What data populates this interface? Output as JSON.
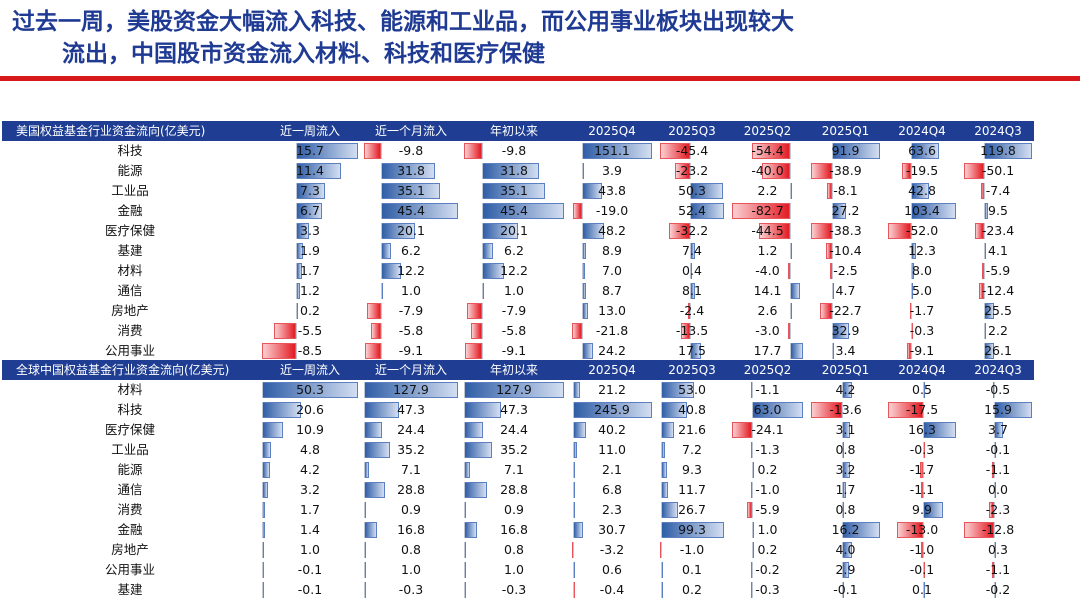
{
  "headline": {
    "line1": "过去一周，美股资金大幅流入科技、能源和工业品，而公用事业板块出现较大",
    "line2": "流出，中国股市资金流入材料、科技和医疗保健"
  },
  "colors": {
    "headline": "#1f3a93",
    "accent_line": "#d7191c",
    "header_bg": "#1f3e93",
    "positive_bar": "#2f5da6",
    "negative_bar": "#e31b23"
  },
  "tables": [
    {
      "title": "美国权益基金行业资金流向(亿美元)",
      "columns": [
        "近一周流入",
        "近一个月流入",
        "年初以来",
        "2025Q4",
        "2025Q3",
        "2025Q2",
        "2025Q1",
        "2024Q4",
        "2024Q3"
      ],
      "rows": [
        {
          "label": "科技",
          "values": [
            "15.7",
            "-9.8",
            "-9.8",
            "151.1",
            "-45.4",
            "-54.4",
            "91.9",
            "63.6",
            "119.8"
          ]
        },
        {
          "label": "能源",
          "values": [
            "11.4",
            "31.8",
            "31.8",
            "3.9",
            "-23.2",
            "-40.0",
            "-38.9",
            "-19.5",
            "-50.1"
          ]
        },
        {
          "label": "工业品",
          "values": [
            "7.3",
            "35.1",
            "35.1",
            "43.8",
            "50.3",
            "2.2",
            "-8.1",
            "42.8",
            "-7.4"
          ]
        },
        {
          "label": "金融",
          "values": [
            "6.7",
            "45.4",
            "45.4",
            "-19.0",
            "52.4",
            "-82.7",
            "27.2",
            "103.4",
            "9.5"
          ]
        },
        {
          "label": "医疗保健",
          "values": [
            "3.3",
            "20.1",
            "20.1",
            "48.2",
            "-32.2",
            "-44.5",
            "-38.3",
            "-52.0",
            "-23.4"
          ]
        },
        {
          "label": "基建",
          "values": [
            "1.9",
            "6.2",
            "6.2",
            "8.9",
            "7.4",
            "1.2",
            "-10.4",
            "12.3",
            "4.1"
          ]
        },
        {
          "label": "材料",
          "values": [
            "1.7",
            "12.2",
            "12.2",
            "7.0",
            "0.4",
            "-4.0",
            "-2.5",
            "8.0",
            "-5.9"
          ]
        },
        {
          "label": "通信",
          "values": [
            "1.2",
            "1.0",
            "1.0",
            "8.7",
            "8.1",
            "14.1",
            "4.7",
            "5.0",
            "-12.4"
          ]
        },
        {
          "label": "房地产",
          "values": [
            "0.2",
            "-7.9",
            "-7.9",
            "13.0",
            "-2.4",
            "2.6",
            "-22.7",
            "-1.7",
            "25.5"
          ]
        },
        {
          "label": "消费",
          "values": [
            "-5.5",
            "-5.8",
            "-5.8",
            "-21.8",
            "-13.5",
            "-3.0",
            "32.9",
            "-0.3",
            "2.2"
          ]
        },
        {
          "label": "公用事业",
          "values": [
            "-8.5",
            "-9.1",
            "-9.1",
            "24.2",
            "17.5",
            "17.7",
            "3.4",
            "-9.1",
            "26.1"
          ]
        }
      ]
    },
    {
      "title": "全球中国权益基金行业资金流向(亿美元)",
      "columns": [
        "近一周流入",
        "近一个月流入",
        "年初以来",
        "2025Q4",
        "2025Q3",
        "2025Q2",
        "2025Q1",
        "2024Q4",
        "2024Q3"
      ],
      "rows": [
        {
          "label": "材料",
          "values": [
            "50.3",
            "127.9",
            "127.9",
            "21.2",
            "53.0",
            "-1.1",
            "4.2",
            "0.5",
            "-0.5"
          ]
        },
        {
          "label": "科技",
          "values": [
            "20.6",
            "47.3",
            "47.3",
            "245.9",
            "40.8",
            "63.0",
            "-13.6",
            "-17.5",
            "15.9"
          ]
        },
        {
          "label": "医疗保健",
          "values": [
            "10.9",
            "24.4",
            "24.4",
            "40.2",
            "21.6",
            "-24.1",
            "3.1",
            "16.3",
            "3.7"
          ]
        },
        {
          "label": "工业品",
          "values": [
            "4.8",
            "35.2",
            "35.2",
            "11.0",
            "7.2",
            "-1.3",
            "0.8",
            "-0.3",
            "-0.1"
          ]
        },
        {
          "label": "能源",
          "values": [
            "4.2",
            "7.1",
            "7.1",
            "2.1",
            "9.3",
            "0.2",
            "3.2",
            "-1.7",
            "-1.1"
          ]
        },
        {
          "label": "通信",
          "values": [
            "3.2",
            "28.8",
            "28.8",
            "6.8",
            "11.7",
            "-1.0",
            "1.7",
            "-1.1",
            "0.0"
          ]
        },
        {
          "label": "消费",
          "values": [
            "1.7",
            "0.9",
            "0.9",
            "2.3",
            "26.7",
            "-5.9",
            "0.8",
            "9.9",
            "-2.3"
          ]
        },
        {
          "label": "金融",
          "values": [
            "1.4",
            "16.8",
            "16.8",
            "30.7",
            "99.3",
            "1.0",
            "16.2",
            "-13.0",
            "-12.8"
          ]
        },
        {
          "label": "房地产",
          "values": [
            "1.0",
            "0.8",
            "0.8",
            "-3.2",
            "-1.0",
            "0.2",
            "4.0",
            "-1.0",
            "0.3"
          ]
        },
        {
          "label": "公用事业",
          "values": [
            "-0.1",
            "1.0",
            "1.0",
            "0.6",
            "0.1",
            "-0.2",
            "2.9",
            "-0.1",
            "-1.1"
          ]
        },
        {
          "label": "基建",
          "values": [
            "-0.1",
            "-0.3",
            "-0.3",
            "-0.4",
            "0.2",
            "-0.3",
            "-0.1",
            "0.1",
            "-0.2"
          ]
        }
      ]
    }
  ]
}
